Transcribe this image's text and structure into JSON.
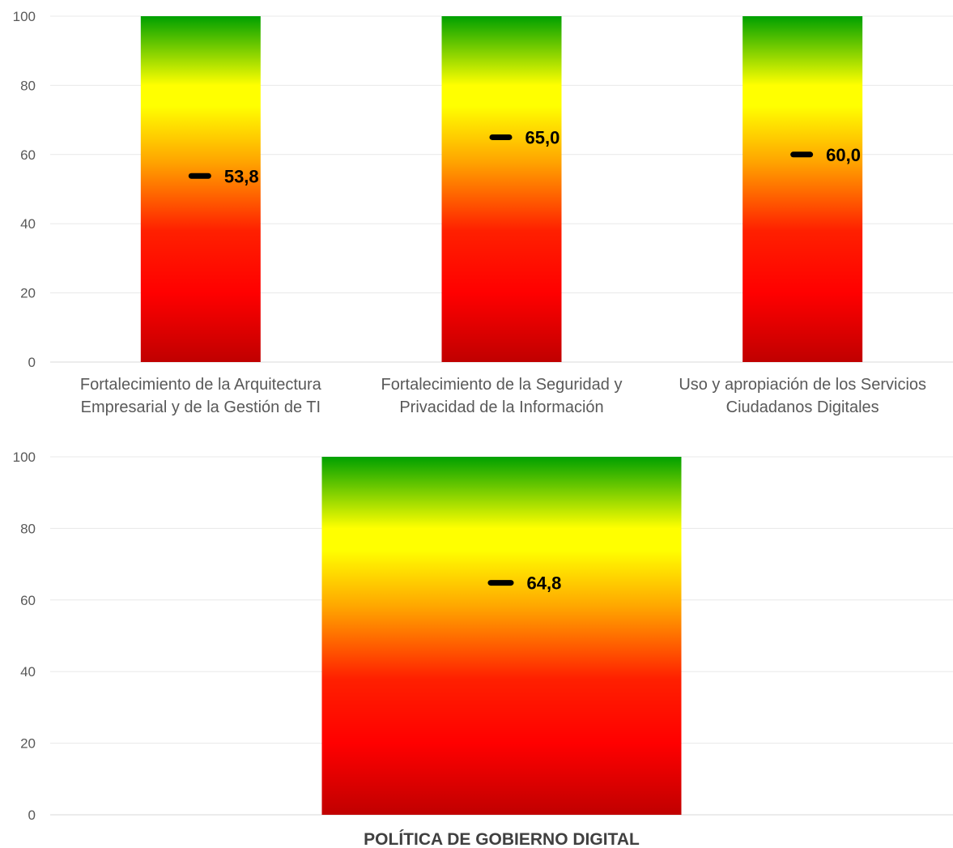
{
  "chart_data": [
    {
      "type": "bar",
      "categories": [
        [
          "Fortalecimiento de la Arquitectura",
          "Empresarial y de la Gestión de TI"
        ],
        [
          "Fortalecimiento de la Seguridad y",
          "Privacidad de la Información"
        ],
        [
          "Uso y apropiación de los Servicios",
          "Ciudadanos Digitales"
        ]
      ],
      "range_max": [
        100,
        100,
        100
      ],
      "values": [
        53.8,
        65.0,
        60.0
      ],
      "value_labels": [
        "53,8",
        "65,0",
        "60,0"
      ],
      "yticks": [
        "0",
        "20",
        "40",
        "60",
        "80",
        "100"
      ],
      "ylim": [
        0,
        100
      ],
      "gradient": "red (0) to yellow (~80) to green (100)",
      "grid": true,
      "legend": "none"
    },
    {
      "type": "bar",
      "categories": [
        [
          "POLÍTICA DE GOBIERNO DIGITAL"
        ]
      ],
      "range_max": [
        100
      ],
      "values": [
        64.8
      ],
      "value_labels": [
        "64,8"
      ],
      "yticks": [
        "0",
        "20",
        "40",
        "60",
        "80",
        "100"
      ],
      "ylim": [
        0,
        100
      ],
      "gradient": "red (0) to yellow (~80) to green (100)",
      "grid": true,
      "legend": "none"
    }
  ],
  "colors": {
    "bottom": "#c00000",
    "red": "#ff0000",
    "orange": "#ff9900",
    "yellow": "#ffff00",
    "green": "#00a000",
    "marker": "#000000"
  }
}
